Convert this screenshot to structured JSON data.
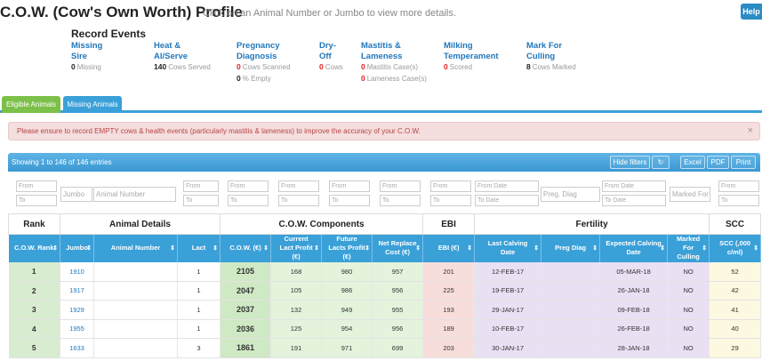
{
  "header": {
    "title": "C.O.W. (Cow's Own Worth) Profile",
    "subtitle": "Click on an Animal Number or Jumbo to view more details.",
    "help_label": "Help"
  },
  "record_events": {
    "title": "Record Events",
    "items": [
      {
        "label_1": "Missing",
        "label_2": "Sire",
        "lines": [
          {
            "value": "0",
            "text": "Missing",
            "color": "dark"
          }
        ]
      },
      {
        "label_1": "Heat &",
        "label_2": "AI/Serve",
        "lines": [
          {
            "value": "140",
            "text": "Cows Served",
            "color": "dark"
          }
        ]
      },
      {
        "label_1": "Pregnancy",
        "label_2": "Diagnosis",
        "lines": [
          {
            "value": "0",
            "text": "Cows Scanned",
            "color": "red"
          },
          {
            "value": "0",
            "text": "% Empty",
            "color": "dark"
          }
        ]
      },
      {
        "label_1": "Dry-",
        "label_2": "Off",
        "lines": [
          {
            "value": "0",
            "text": "Cows",
            "color": "red"
          }
        ]
      },
      {
        "label_1": "Mastitis &",
        "label_2": "Lameness",
        "lines": [
          {
            "value": "0",
            "text": "Mastitis Case(s)",
            "color": "red"
          },
          {
            "value": "0",
            "text": "Lameness Case(s)",
            "color": "red"
          }
        ]
      },
      {
        "label_1": "Milking",
        "label_2": "Temperament",
        "lines": [
          {
            "value": "0",
            "text": "Scored",
            "color": "red"
          }
        ]
      },
      {
        "label_1": "Mark For",
        "label_2": "Culling",
        "lines": [
          {
            "value": "8",
            "text": "Cows Marked",
            "color": "dark"
          }
        ]
      }
    ]
  },
  "tabs": [
    {
      "label": "Eligible Animals"
    },
    {
      "label": "Missing Animals"
    }
  ],
  "alert": {
    "message": "Please ensure to record EMPTY cows & health events (particularly mastitis & lameness) to improve the accuracy of your C.O.W.",
    "close": "×"
  },
  "toolbar": {
    "info": "Showing 1 to 146 of 146 entries",
    "hide_filters": "Hide filters",
    "refresh_icon": "↻",
    "excel": "Excel",
    "pdf": "PDF",
    "print": "Print"
  },
  "filters": {
    "from": "From",
    "to": "To",
    "jumbo": "Jumbo",
    "animal_number": "Animal Number",
    "from_date": "From Date",
    "to_date": "To Date",
    "preg_diag": "Preg. Diag",
    "marked_for": "Marked For"
  },
  "table": {
    "groups": [
      "Rank",
      "Animal Details",
      "C.O.W. Components",
      "EBI",
      "Fertility",
      "SCC"
    ],
    "columns": [
      "C.O.W. Rank",
      "Jumbo",
      "Animal Number",
      "Lact",
      "C.O.W. (€)",
      "Current Lact Profit (€)",
      "Future Lacts Profit (€)",
      "Net Replace Cost (€)",
      "EBI (€)",
      "Last Calving Date",
      "Preg Diag",
      "Expected Calving Date",
      "Marked For Culling",
      "SCC (,000 c/ml)"
    ],
    "rows": [
      {
        "rank": "1",
        "jumbo": "1910",
        "animal": "",
        "lact": "1",
        "cow": "2105",
        "cur": "168",
        "fut": "980",
        "net": "957",
        "ebi": "201",
        "last": "12-FEB-17",
        "preg": "",
        "exp": "05-MAR-18",
        "cull": "NO",
        "scc": "52"
      },
      {
        "rank": "2",
        "jumbo": "1917",
        "animal": "",
        "lact": "1",
        "cow": "2047",
        "cur": "105",
        "fut": "986",
        "net": "956",
        "ebi": "225",
        "last": "19-FEB-17",
        "preg": "",
        "exp": "26-JAN-18",
        "cull": "NO",
        "scc": "42"
      },
      {
        "rank": "3",
        "jumbo": "1929",
        "animal": "",
        "lact": "1",
        "cow": "2037",
        "cur": "132",
        "fut": "949",
        "net": "955",
        "ebi": "193",
        "last": "29-JAN-17",
        "preg": "",
        "exp": "09-FEB-18",
        "cull": "NO",
        "scc": "41"
      },
      {
        "rank": "4",
        "jumbo": "1955",
        "animal": "",
        "lact": "1",
        "cow": "2036",
        "cur": "125",
        "fut": "954",
        "net": "956",
        "ebi": "189",
        "last": "10-FEB-17",
        "preg": "",
        "exp": "26-FEB-18",
        "cull": "NO",
        "scc": "40"
      },
      {
        "rank": "5",
        "jumbo": "1633",
        "animal": "",
        "lact": "3",
        "cow": "1861",
        "cur": "191",
        "fut": "971",
        "net": "699",
        "ebi": "203",
        "last": "30-JAN-17",
        "preg": "",
        "exp": "28-JAN-18",
        "cull": "NO",
        "scc": "29"
      }
    ]
  }
}
